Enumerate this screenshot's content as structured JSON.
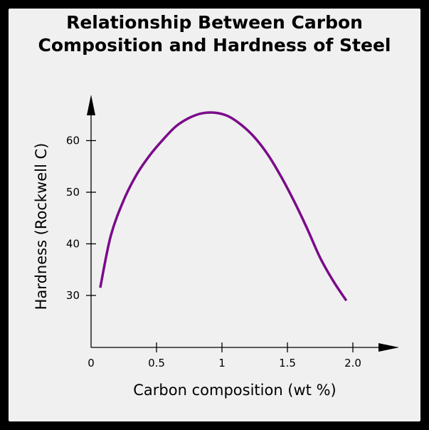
{
  "chart_data": {
    "type": "line",
    "title_lines": [
      "Relationship Between Carbon",
      "Composition and Hardness of Steel"
    ],
    "xlabel": "Carbon composition (wt %)",
    "ylabel": "Hardness (Rockwell C)",
    "xlim": [
      0,
      2.2
    ],
    "ylim": [
      20,
      70
    ],
    "x_ticks": [
      0,
      0.5,
      1,
      1.5,
      2.0
    ],
    "x_tick_labels": [
      "0",
      "0.5",
      "1",
      "1.5",
      "2.0"
    ],
    "y_ticks": [
      30,
      40,
      50,
      60
    ],
    "y_tick_labels": [
      "30",
      "40",
      "50",
      "60"
    ],
    "grid": false,
    "series": [
      {
        "color": "#7b0a8a",
        "x": [
          0.07,
          0.15,
          0.25,
          0.35,
          0.45,
          0.55,
          0.65,
          0.75,
          0.85,
          0.95,
          1.05,
          1.15,
          1.25,
          1.35,
          1.45,
          1.55,
          1.65,
          1.75,
          1.85,
          1.95
        ],
        "y": [
          31.5,
          41.5,
          48.5,
          53.5,
          57.2,
          60.2,
          62.8,
          64.4,
          65.3,
          65.4,
          64.7,
          63.0,
          60.6,
          57.3,
          53.1,
          48.3,
          43.0,
          37.3,
          32.8,
          29.0
        ]
      }
    ]
  }
}
